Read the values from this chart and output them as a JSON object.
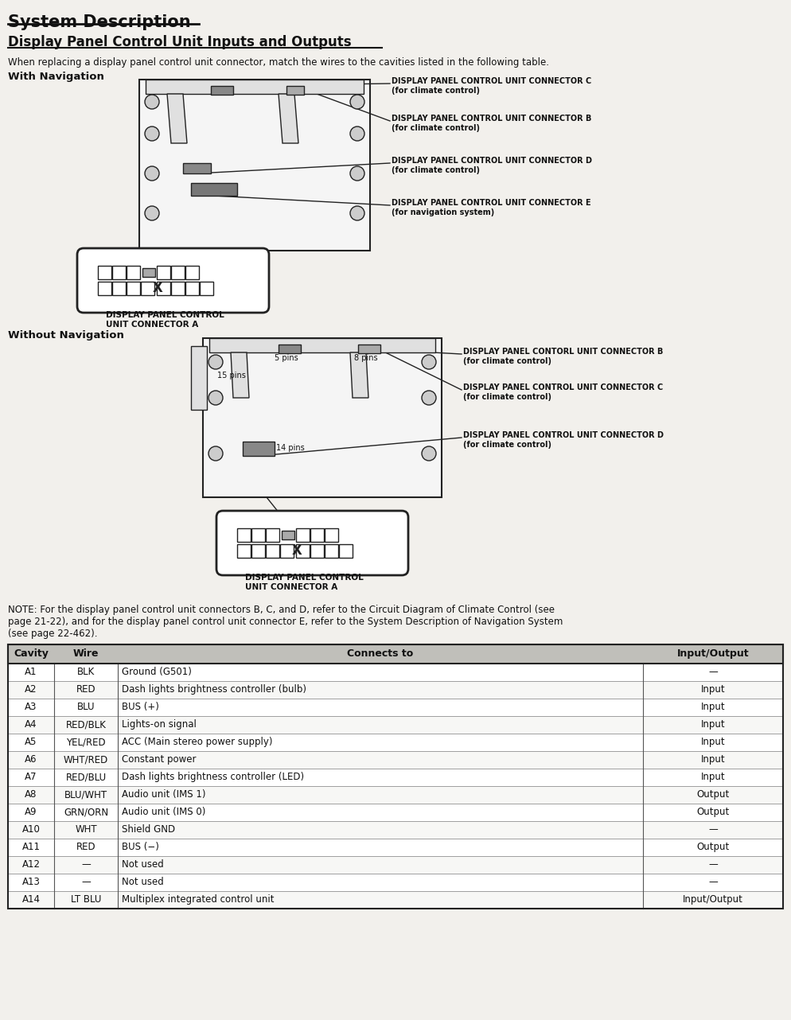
{
  "title": "System Description",
  "subtitle": "Display Panel Control Unit Inputs and Outputs",
  "intro_text": "When replacing a display panel control unit connector, match the wires to the cavities listed in the following table.",
  "with_nav_label": "With Navigation",
  "without_nav_label": "Without Navigation",
  "note_text": "NOTE: For the display panel control unit connectors B, C, and D, refer to the Circuit Diagram of Climate Control (see\npage 21-22), and for the display panel control unit connector E, refer to the System Description of Navigation System\n(see page 22-462).",
  "connector_labels_nav": [
    "DISPLAY PANEL CONTROL UNIT CONNECTOR C\n(for climate control)",
    "DISPLAY PANEL CONTROL UNIT CONNECTOR B\n(for climate control)",
    "DISPLAY PANEL CONTROL UNIT CONNECTOR D\n(for climate control)",
    "DISPLAY PANEL CONTROL UNIT CONNECTOR E\n(for navigation system)"
  ],
  "connector_labels_no_nav": [
    "DISPLAY PANEL CONTORL UNIT CONNECTOR B\n(for climate control)",
    "DISPLAY PANEL CONTROL UNIT CONNECTOR C\n(for climate control)",
    "DISPLAY PANEL CONTROL UNIT CONNECTOR D\n(for climate control)"
  ],
  "connector_a_label": "DISPLAY PANEL CONTROL\nUNIT CONNECTOR A",
  "table_headers": [
    "Cavity",
    "Wire",
    "Connects to",
    "Input/Output"
  ],
  "table_rows": [
    [
      "A1",
      "BLK",
      "Ground (G501)",
      "—"
    ],
    [
      "A2",
      "RED",
      "Dash lights brightness controller (bulb)",
      "Input"
    ],
    [
      "A3",
      "BLU",
      "BUS (+)",
      "Input"
    ],
    [
      "A4",
      "RED/BLK",
      "Lights-on signal",
      "Input"
    ],
    [
      "A5",
      "YEL/RED",
      "ACC (Main stereo power supply)",
      "Input"
    ],
    [
      "A6",
      "WHT/RED",
      "Constant power",
      "Input"
    ],
    [
      "A7",
      "RED/BLU",
      "Dash lights brightness controller (LED)",
      "Input"
    ],
    [
      "A8",
      "BLU/WHT",
      "Audio unit (IMS 1)",
      "Output"
    ],
    [
      "A9",
      "GRN/ORN",
      "Audio unit (IMS 0)",
      "Output"
    ],
    [
      "A10",
      "WHT",
      "Shield GND",
      "—"
    ],
    [
      "A11",
      "RED",
      "BUS (−)",
      "Output"
    ],
    [
      "A12",
      "—",
      "Not used",
      "—"
    ],
    [
      "A13",
      "—",
      "Not used",
      "—"
    ],
    [
      "A14",
      "LT BLU",
      "Multiplex integrated control unit",
      "Input/Output"
    ]
  ],
  "bg_color": "#e8e6e0",
  "table_header_bg": "#c0bfba",
  "table_row_bg": "#ffffff",
  "line_color": "#222222"
}
